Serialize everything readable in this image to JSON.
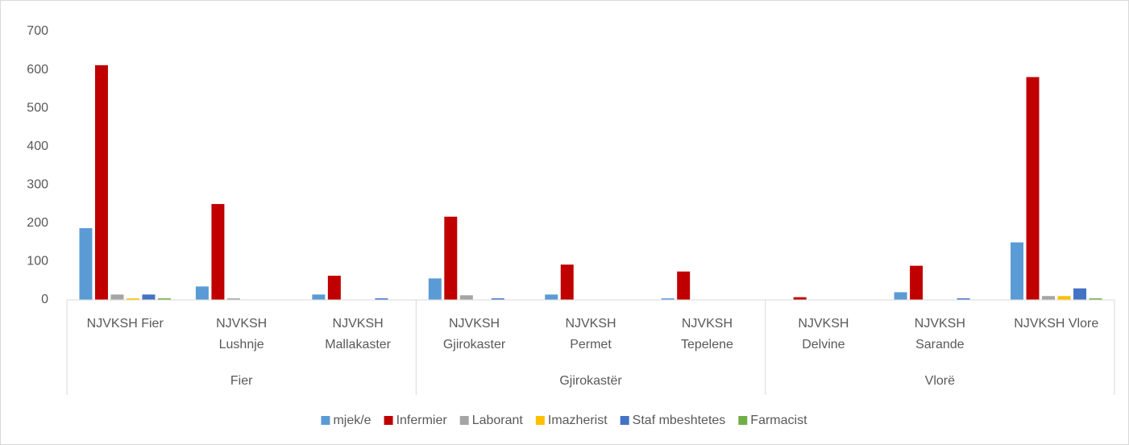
{
  "chart_data": {
    "type": "bar",
    "categories": [
      "NJVKSH Fier",
      "NJVKSH Lushnje",
      "NJVKSH Mallakaster",
      "NJVKSH Gjirokaster",
      "NJVKSH Permet",
      "NJVKSH Tepelene",
      "NJVKSH Delvine",
      "NJVKSH Sarande",
      "NJVKSH Vlore"
    ],
    "groups": [
      "Fier",
      "Gjirokastër",
      "Vlorë"
    ],
    "series": [
      {
        "name": "mjek/e",
        "color": "#5b9bd5",
        "values": [
          187,
          35,
          14,
          56,
          14,
          4,
          0,
          20,
          150
        ]
      },
      {
        "name": "Infermier",
        "color": "#c00000",
        "values": [
          612,
          250,
          63,
          217,
          92,
          74,
          7,
          89,
          581
        ]
      },
      {
        "name": "Laborant",
        "color": "#a5a5a5",
        "values": [
          14,
          4,
          0,
          12,
          0,
          0,
          0,
          0,
          10
        ]
      },
      {
        "name": "Imazherist",
        "color": "#ffc000",
        "values": [
          4,
          0,
          0,
          0,
          0,
          0,
          0,
          0,
          10
        ]
      },
      {
        "name": "Staf mbeshtetes",
        "color": "#4472c4",
        "values": [
          14,
          0,
          4,
          4,
          0,
          0,
          0,
          4,
          30
        ]
      },
      {
        "name": "Farmacist",
        "color": "#70ad47",
        "values": [
          4,
          0,
          0,
          0,
          0,
          0,
          0,
          0,
          4
        ]
      }
    ],
    "ylim": [
      0,
      700
    ],
    "yticks": [
      0,
      100,
      200,
      300,
      400,
      500,
      600,
      700
    ],
    "grid": false,
    "legend": "bottom"
  }
}
